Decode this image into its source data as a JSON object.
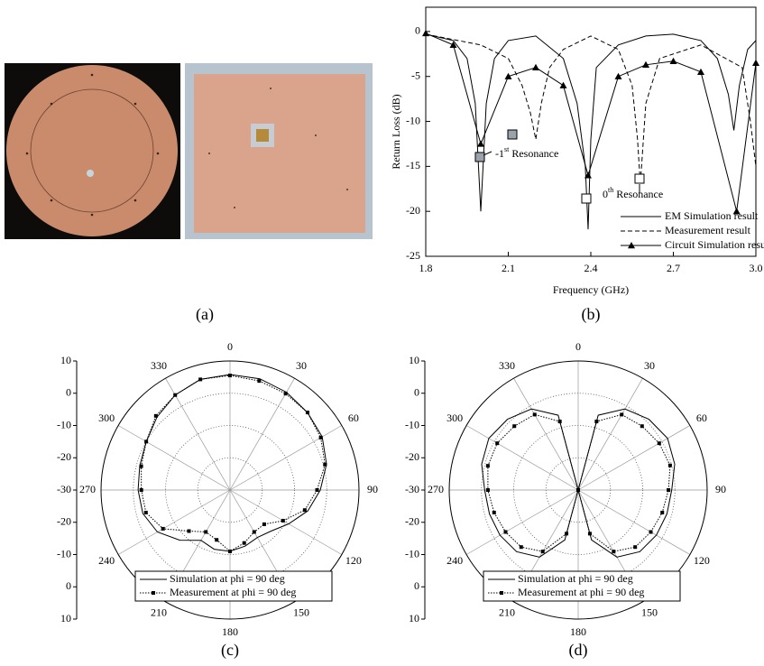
{
  "figure": {
    "label": "(a)"
  },
  "chart_data": [
    {
      "type": "line",
      "label": "(b)",
      "xlabel": "Frequency (GHz)",
      "ylabel": "Return Loss (dB)",
      "xlim": [
        1.8,
        3.0
      ],
      "xticks": [
        1.8,
        2.1,
        2.4,
        2.7,
        {
          "value": 3,
          "label": "3.0"
        }
      ],
      "ylim": [
        -25,
        2.7
      ],
      "yticks": [
        0,
        -5,
        -10,
        -15,
        -20,
        -25
      ],
      "series": [
        {
          "name": "EM Simulation result",
          "color": "#000000",
          "style": "solid",
          "x": [
            1.8,
            1.9,
            1.95,
            1.98,
            2.0,
            2.02,
            2.05,
            2.1,
            2.2,
            2.3,
            2.35,
            2.38,
            2.39,
            2.4,
            2.42,
            2.5,
            2.6,
            2.7,
            2.8,
            2.86,
            2.9,
            2.92,
            2.94,
            2.97,
            3.0
          ],
          "values": [
            -0.3,
            -1,
            -3,
            -8,
            -20,
            -8,
            -3,
            -1,
            -0.5,
            -3,
            -8,
            -15,
            -22,
            -12,
            -4,
            -1.5,
            -0.5,
            -0.3,
            -1,
            -3,
            -7,
            -11,
            -6,
            -2,
            -1
          ]
        },
        {
          "name": "Measurement result",
          "color": "#000000",
          "style": "dashed",
          "x": [
            1.8,
            2.0,
            2.1,
            2.15,
            2.18,
            2.2,
            2.22,
            2.25,
            2.3,
            2.4,
            2.5,
            2.55,
            2.57,
            2.58,
            2.6,
            2.65,
            2.8,
            2.95,
            2.98,
            3.0
          ],
          "values": [
            -0.3,
            -1.5,
            -3,
            -6,
            -9,
            -12,
            -8,
            -4,
            -2,
            -0.5,
            -2,
            -6,
            -12,
            -17,
            -8,
            -3,
            -1.5,
            -4,
            -10,
            -15
          ]
        },
        {
          "name": "Circuit Simulation result",
          "color": "#000000",
          "style": "solid",
          "marker": "triangle",
          "x": [
            1.8,
            1.9,
            2.0,
            2.1,
            2.2,
            2.3,
            2.39,
            2.5,
            2.6,
            2.7,
            2.8,
            2.93,
            3.0
          ],
          "values": [
            -0.2,
            -1.5,
            -12.5,
            -5,
            -4,
            -6,
            -16,
            -5,
            -3.7,
            -3.3,
            -4.5,
            -20,
            -3.5
          ]
        }
      ],
      "annotations": [
        {
          "text": "-1",
          "sup": "st",
          "rest": " Resonance"
        },
        {
          "text": "0",
          "sup": "th",
          "rest": " Resonance"
        }
      ]
    },
    {
      "type": "polar",
      "label": "(c)",
      "rlim": [
        -30,
        10
      ],
      "rticks": [
        10,
        0,
        -10,
        -20,
        -30
      ],
      "angle_ticks": [
        0,
        30,
        60,
        90,
        120,
        150,
        180,
        210,
        240,
        270,
        300,
        330
      ],
      "theta": [
        0,
        15,
        30,
        45,
        60,
        75,
        90,
        105,
        120,
        135,
        150,
        165,
        180,
        195,
        210,
        225,
        240,
        255,
        270,
        285,
        300,
        315,
        330,
        345
      ],
      "series": [
        {
          "name": "Simulation at phi = 90 deg",
          "color": "#000000",
          "style": "solid",
          "values": [
            5.8,
            5.7,
            5,
            4,
            3,
            1,
            -2,
            -5,
            -9,
            -12,
            -13,
            -12,
            -11,
            -11,
            -12,
            -8,
            -4,
            -2,
            -1.5,
            -1,
            0,
            2,
            4,
            5.5
          ]
        },
        {
          "name": "Measurement at phi = 90 deg",
          "color": "#000000",
          "style": "dotted",
          "marker": "square",
          "values": [
            5.5,
            5,
            4.5,
            4,
            2.5,
            0.5,
            -3,
            -6,
            -11,
            -15,
            -15,
            -13,
            -11,
            -14,
            -15,
            -12,
            -6,
            -3,
            -2.5,
            -1.5,
            0,
            2.5,
            4,
            5.5
          ]
        }
      ]
    },
    {
      "type": "polar",
      "label": "(d)",
      "rlim": [
        -30,
        10
      ],
      "rticks": [
        10,
        0,
        -10,
        -20,
        -30
      ],
      "angle_ticks": [
        0,
        30,
        60,
        90,
        120,
        150,
        180,
        210,
        240,
        270,
        300,
        330
      ],
      "theta": [
        0,
        15,
        30,
        45,
        60,
        75,
        90,
        105,
        120,
        135,
        150,
        165,
        180,
        195,
        210,
        225,
        240,
        255,
        270,
        285,
        300,
        315,
        330,
        345
      ],
      "series": [
        {
          "name": "Simulation at phi = 90 deg",
          "color": "#000000",
          "style": "solid",
          "values": [
            -30,
            -6,
            -1,
            1,
            2,
            1,
            -1,
            -1.5,
            -2,
            -3,
            -6,
            -14,
            -30,
            -14,
            -6,
            -3,
            -2,
            -1.5,
            -1,
            1,
            2,
            1,
            -1,
            -6
          ]
        },
        {
          "name": "Measurement at phi = 90 deg",
          "color": "#000000",
          "style": "dotted",
          "marker": "square",
          "values": [
            -30,
            -8,
            -3,
            -2,
            -1,
            -0.5,
            -2,
            -3,
            -4,
            -5,
            -8,
            -16,
            -30,
            -16,
            -8,
            -5,
            -4,
            -3,
            -2,
            -1,
            -1,
            -2,
            -3,
            -8
          ]
        }
      ]
    }
  ]
}
